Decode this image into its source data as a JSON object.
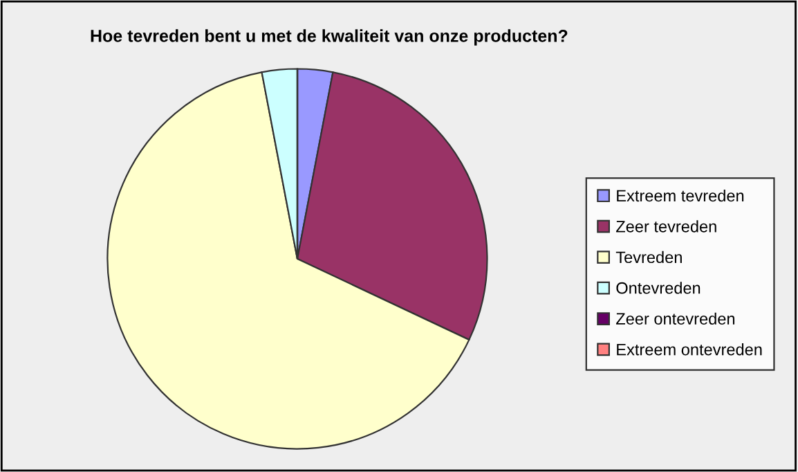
{
  "chart_data": {
    "type": "pie",
    "title": "Hoe tevreden bent u met de kwaliteit van onze producten?",
    "categories": [
      "Extreem tevreden",
      "Zeer tevreden",
      "Tevreden",
      "Ontevreden",
      "Zeer ontevreden",
      "Extreem ontevreden"
    ],
    "values": [
      3,
      29,
      65,
      3,
      0,
      0
    ],
    "colors": [
      "#9999ff",
      "#993366",
      "#ffffcc",
      "#ccffff",
      "#660066",
      "#ff8080"
    ],
    "legend": "right"
  }
}
